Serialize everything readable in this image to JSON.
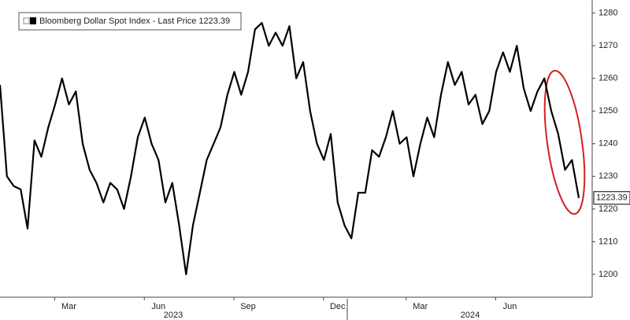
{
  "chart_data": {
    "type": "line",
    "categories": [
      null,
      null,
      null,
      null,
      null,
      null,
      null,
      null,
      null,
      null,
      "Mar",
      null,
      null,
      null,
      null,
      null,
      null,
      null,
      null,
      null,
      null,
      null,
      null,
      "Jun",
      null,
      null,
      null,
      null,
      null,
      null,
      null,
      null,
      null,
      null,
      null,
      null,
      "Sep",
      null,
      null,
      null,
      null,
      null,
      null,
      null,
      null,
      null,
      null,
      null,
      null,
      "Dec",
      null,
      null,
      null,
      null,
      null,
      null,
      null,
      null,
      null,
      null,
      null,
      "Mar",
      null,
      null,
      null,
      null,
      null,
      null,
      null,
      null,
      null,
      null,
      null,
      null,
      "Jun",
      null,
      null,
      null,
      null,
      null,
      null,
      null,
      null,
      null,
      null
    ],
    "year_labels": [
      "2023",
      "2024"
    ],
    "series": [
      {
        "name": "Bloomberg Dollar Spot Index - Last Price 1223.39",
        "color": "#000000",
        "values": [
          1258,
          1230,
          1227,
          1226,
          1214,
          1241,
          1236,
          1245,
          1252,
          1260,
          1252,
          1256,
          1240,
          1232,
          1228,
          1222,
          1228,
          1226,
          1220,
          1230,
          1242,
          1248,
          1240,
          1235,
          1222,
          1228,
          1215,
          1200,
          1215,
          1225,
          1235,
          1240,
          1245,
          1255,
          1262,
          1255,
          1262,
          1275,
          1277,
          1270,
          1274,
          1270,
          1276,
          1260,
          1265,
          1250,
          1240,
          1235,
          1243,
          1222,
          1215,
          1211,
          1225,
          1225,
          1238,
          1236,
          1242,
          1250,
          1240,
          1242,
          1230,
          1240,
          1248,
          1242,
          1255,
          1265,
          1258,
          1262,
          1252,
          1255,
          1246,
          1250,
          1262,
          1268,
          1262,
          1270,
          1257,
          1250,
          1256,
          1260,
          1250,
          1243,
          1232,
          1235,
          1223.39
        ]
      }
    ],
    "ylim": [
      1193,
      1284
    ],
    "yticks": [
      1200,
      1210,
      1220,
      1230,
      1240,
      1250,
      1260,
      1270,
      1280
    ],
    "grid": false,
    "legend": "upper left"
  }
}
